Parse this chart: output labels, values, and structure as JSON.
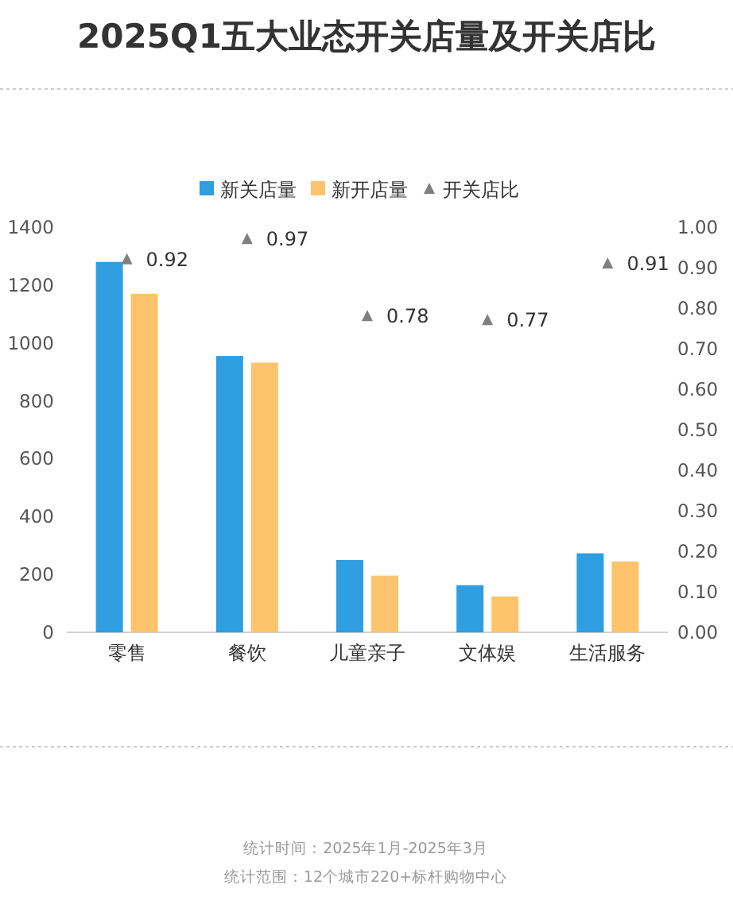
{
  "chart_data": {
    "type": "bar",
    "title": "2025Q1五大业态开关店量及开关店比",
    "categories": [
      "零售",
      "餐饮",
      "儿童亲子",
      "文体娱",
      "生活服务"
    ],
    "series": [
      {
        "name": "新关店量",
        "color": "#2f9ee0",
        "values": [
          1280,
          955,
          250,
          163,
          273
        ]
      },
      {
        "name": "新开店量",
        "color": "#fdc46d",
        "values": [
          1170,
          932,
          196,
          124,
          245
        ]
      },
      {
        "name": "开关店比",
        "type": "scatter",
        "axis": "y2",
        "marker": "triangle",
        "color": "#7f7f7f",
        "values": [
          0.92,
          0.97,
          0.78,
          0.77,
          0.91
        ],
        "data_labels": true
      }
    ],
    "ylim": [
      0,
      1400
    ],
    "yticks": [
      0,
      200,
      400,
      600,
      800,
      1000,
      1200,
      1400
    ],
    "y2lim": [
      0,
      1
    ],
    "y2ticks": [
      {
        "value": 0,
        "label": "0.00"
      },
      {
        "value": 0.1,
        "label": "0.10"
      },
      {
        "value": 0.2,
        "label": "0.20"
      },
      {
        "value": 0.3,
        "label": "0.30"
      },
      {
        "value": 0.4,
        "label": "0.40"
      },
      {
        "value": 0.5,
        "label": "0.50"
      },
      {
        "value": 0.6,
        "label": "0.60"
      },
      {
        "value": 0.7,
        "label": "0.70"
      },
      {
        "value": 0.8,
        "label": "0.80"
      },
      {
        "value": 0.9,
        "label": "0.90"
      },
      {
        "value": 1,
        "label": "1.00"
      }
    ],
    "grid": false,
    "legend": "top",
    "annotations": [
      "统计时间：2025年1月-2025年3月",
      "统计范围：12个城市220+标杆购物中心"
    ]
  }
}
